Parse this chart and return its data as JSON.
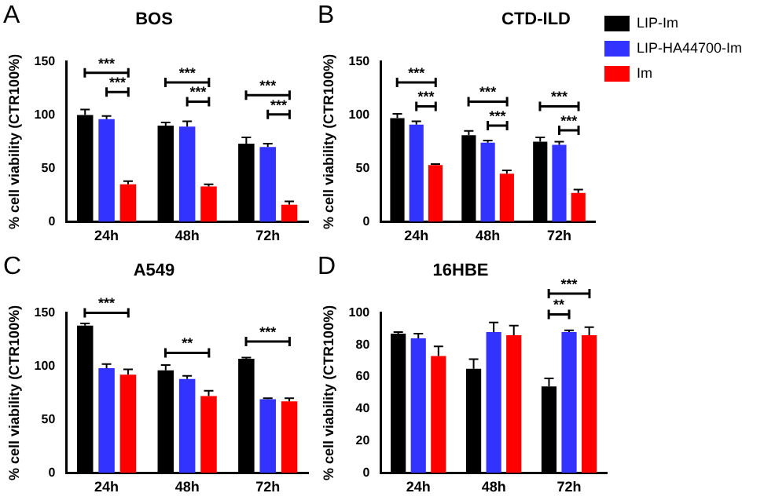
{
  "chart_data": [
    {
      "type": "bar",
      "title": "BOS",
      "ylabel": "% cell viability (CTR100%)",
      "categories": [
        "24h",
        "48h",
        "72h"
      ],
      "ylim": [
        0,
        150
      ],
      "yticks": [
        0,
        50,
        100,
        150
      ],
      "grid": false,
      "legend": false,
      "series": [
        {
          "color": "#000000",
          "values": [
            100,
            90,
            73
          ],
          "errors": [
            5,
            3,
            6
          ]
        },
        {
          "color": "#3333ff",
          "values": [
            96,
            89,
            70
          ],
          "errors": [
            3,
            5,
            3
          ]
        },
        {
          "color": "#ff0000",
          "values": [
            35,
            33,
            16
          ],
          "errors": [
            3,
            2,
            3
          ]
        }
      ],
      "annotations": [
        "A",
        "***",
        "***",
        "***",
        "***",
        "***",
        "***"
      ]
    },
    {
      "type": "bar",
      "title": "CTD-ILD",
      "ylabel": "% cell viability (CTR100%)",
      "categories": [
        "24h",
        "48h",
        "72h"
      ],
      "ylim": [
        0,
        150
      ],
      "yticks": [
        0,
        50,
        100,
        150
      ],
      "grid": false,
      "legend": "right",
      "series": [
        {
          "name": "LIP-Im",
          "color": "#000000",
          "values": [
            97,
            81,
            75
          ],
          "errors": [
            4,
            4,
            4
          ]
        },
        {
          "name": "LIP-HA44700-Im",
          "color": "#3333ff",
          "values": [
            91,
            74,
            72
          ],
          "errors": [
            3,
            2,
            3
          ]
        },
        {
          "name": "Im",
          "color": "#ff0000",
          "values": [
            53,
            45,
            27
          ],
          "errors": [
            1,
            3,
            3
          ]
        }
      ],
      "annotations": [
        "B",
        "***",
        "***",
        "***",
        "***",
        "***",
        "***"
      ]
    },
    {
      "type": "bar",
      "title": "A549",
      "ylabel": "% cell viability (CTR100%)",
      "categories": [
        "24h",
        "48h",
        "72h"
      ],
      "ylim": [
        0,
        150
      ],
      "yticks": [
        0,
        50,
        100,
        150
      ],
      "grid": false,
      "legend": false,
      "series": [
        {
          "color": "#000000",
          "values": [
            138,
            96,
            107
          ],
          "errors": [
            2,
            5,
            1
          ]
        },
        {
          "color": "#3333ff",
          "values": [
            98,
            88,
            69
          ],
          "errors": [
            4,
            3,
            1
          ]
        },
        {
          "color": "#ff0000",
          "values": [
            92,
            72,
            67
          ],
          "errors": [
            5,
            5,
            3
          ]
        }
      ],
      "annotations": [
        "C",
        "***",
        "**",
        "***"
      ]
    },
    {
      "type": "bar",
      "title": "16HBE",
      "ylabel": "% cell viability (CTR100%)",
      "categories": [
        "24h",
        "48h",
        "72h"
      ],
      "ylim": [
        0,
        100
      ],
      "yticks": [
        0,
        20,
        40,
        60,
        80,
        100
      ],
      "grid": false,
      "legend": false,
      "series": [
        {
          "color": "#000000",
          "values": [
            87,
            65,
            54
          ],
          "errors": [
            1,
            6,
            5
          ]
        },
        {
          "color": "#3333ff",
          "values": [
            84,
            88,
            88
          ],
          "errors": [
            3,
            6,
            1
          ]
        },
        {
          "color": "#ff0000",
          "values": [
            73,
            86,
            86
          ],
          "errors": [
            6,
            6,
            5
          ]
        }
      ],
      "annotations": [
        "D",
        "***",
        "**"
      ]
    }
  ]
}
